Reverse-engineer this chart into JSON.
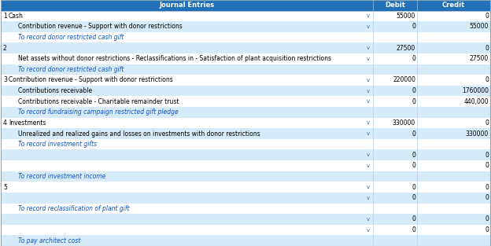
{
  "title": "Journal Entries",
  "col_headers": [
    "Journal Entries",
    "Debit",
    "Credit"
  ],
  "header_bg": "#2170B8",
  "header_text_color": "#FFFFFF",
  "row_alt_bg": "#D6EAF8",
  "row_white_bg": "#FFFFFF",
  "link_color": "#1155CC",
  "text_color": "#000000",
  "rows": [
    {
      "num": "1",
      "indent": 0,
      "text": "Cash",
      "v": true,
      "debit": "55000",
      "credit": "0",
      "bg": "white"
    },
    {
      "num": "",
      "indent": 1,
      "text": "Contribution revenue - Support with donor restrictions",
      "v": true,
      "debit": "0",
      "credit": "55000",
      "bg": "alt"
    },
    {
      "num": "",
      "indent": 1,
      "text": "To record donor restricted cash gift",
      "v": false,
      "debit": "",
      "credit": "",
      "bg": "white",
      "link": true
    },
    {
      "num": "2",
      "indent": 0,
      "text": "",
      "v": true,
      "debit": "27500",
      "credit": "0",
      "bg": "alt"
    },
    {
      "num": "",
      "indent": 1,
      "text": "Net assets without donor restrictions - Reclassifications in - Satisfaction of plant acquisition restrictions",
      "v": true,
      "debit": "0",
      "credit": "27500",
      "bg": "white"
    },
    {
      "num": "",
      "indent": 1,
      "text": "To record donor restricted cash gift",
      "v": false,
      "debit": "",
      "credit": "",
      "bg": "alt",
      "link": true
    },
    {
      "num": "3",
      "indent": 0,
      "text": "Contribution revenue - Support with donor restrictions",
      "v": true,
      "debit": "220000",
      "credit": "0",
      "bg": "white"
    },
    {
      "num": "",
      "indent": 1,
      "text": "Contributions receivable",
      "v": true,
      "debit": "0",
      "credit": "1760000",
      "bg": "alt"
    },
    {
      "num": "",
      "indent": 1,
      "text": "Contributions receivable - Charitable remainder trust",
      "v": true,
      "debit": "0",
      "credit": "440,000",
      "bg": "white"
    },
    {
      "num": "",
      "indent": 1,
      "text": "To record fundraising campaign restricted gift pledge",
      "v": false,
      "debit": "",
      "credit": "",
      "bg": "alt",
      "link": true
    },
    {
      "num": "4",
      "indent": 0,
      "text": "Investments",
      "v": true,
      "debit": "330000",
      "credit": "0",
      "bg": "white"
    },
    {
      "num": "",
      "indent": 1,
      "text": "Unrealized and realized gains and losses on investments with donor restrictions",
      "v": true,
      "debit": "0",
      "credit": "330000",
      "bg": "alt"
    },
    {
      "num": "",
      "indent": 1,
      "text": "To record investment gifts",
      "v": false,
      "debit": "",
      "credit": "",
      "bg": "white",
      "link": true
    },
    {
      "num": "",
      "indent": 0,
      "text": "",
      "v": true,
      "debit": "0",
      "credit": "0",
      "bg": "alt"
    },
    {
      "num": "",
      "indent": 0,
      "text": "",
      "v": true,
      "debit": "0",
      "credit": "0",
      "bg": "white"
    },
    {
      "num": "",
      "indent": 1,
      "text": "To record investment income",
      "v": false,
      "debit": "",
      "credit": "",
      "bg": "alt",
      "link": true
    },
    {
      "num": "5",
      "indent": 0,
      "text": "",
      "v": true,
      "debit": "0",
      "credit": "0",
      "bg": "white"
    },
    {
      "num": "",
      "indent": 0,
      "text": "",
      "v": true,
      "debit": "0",
      "credit": "0",
      "bg": "alt"
    },
    {
      "num": "",
      "indent": 1,
      "text": "To record reclassification of plant gift",
      "v": false,
      "debit": "",
      "credit": "",
      "bg": "white",
      "link": true
    },
    {
      "num": "",
      "indent": 0,
      "text": "",
      "v": true,
      "debit": "0",
      "credit": "0",
      "bg": "alt"
    },
    {
      "num": "",
      "indent": 0,
      "text": "",
      "v": true,
      "debit": "0",
      "credit": "0",
      "bg": "white"
    },
    {
      "num": "",
      "indent": 1,
      "text": "To pay architect cost",
      "v": false,
      "debit": "",
      "credit": "",
      "bg": "alt",
      "link": true
    }
  ],
  "figsize": [
    6.24,
    3.13
  ],
  "dpi": 100
}
